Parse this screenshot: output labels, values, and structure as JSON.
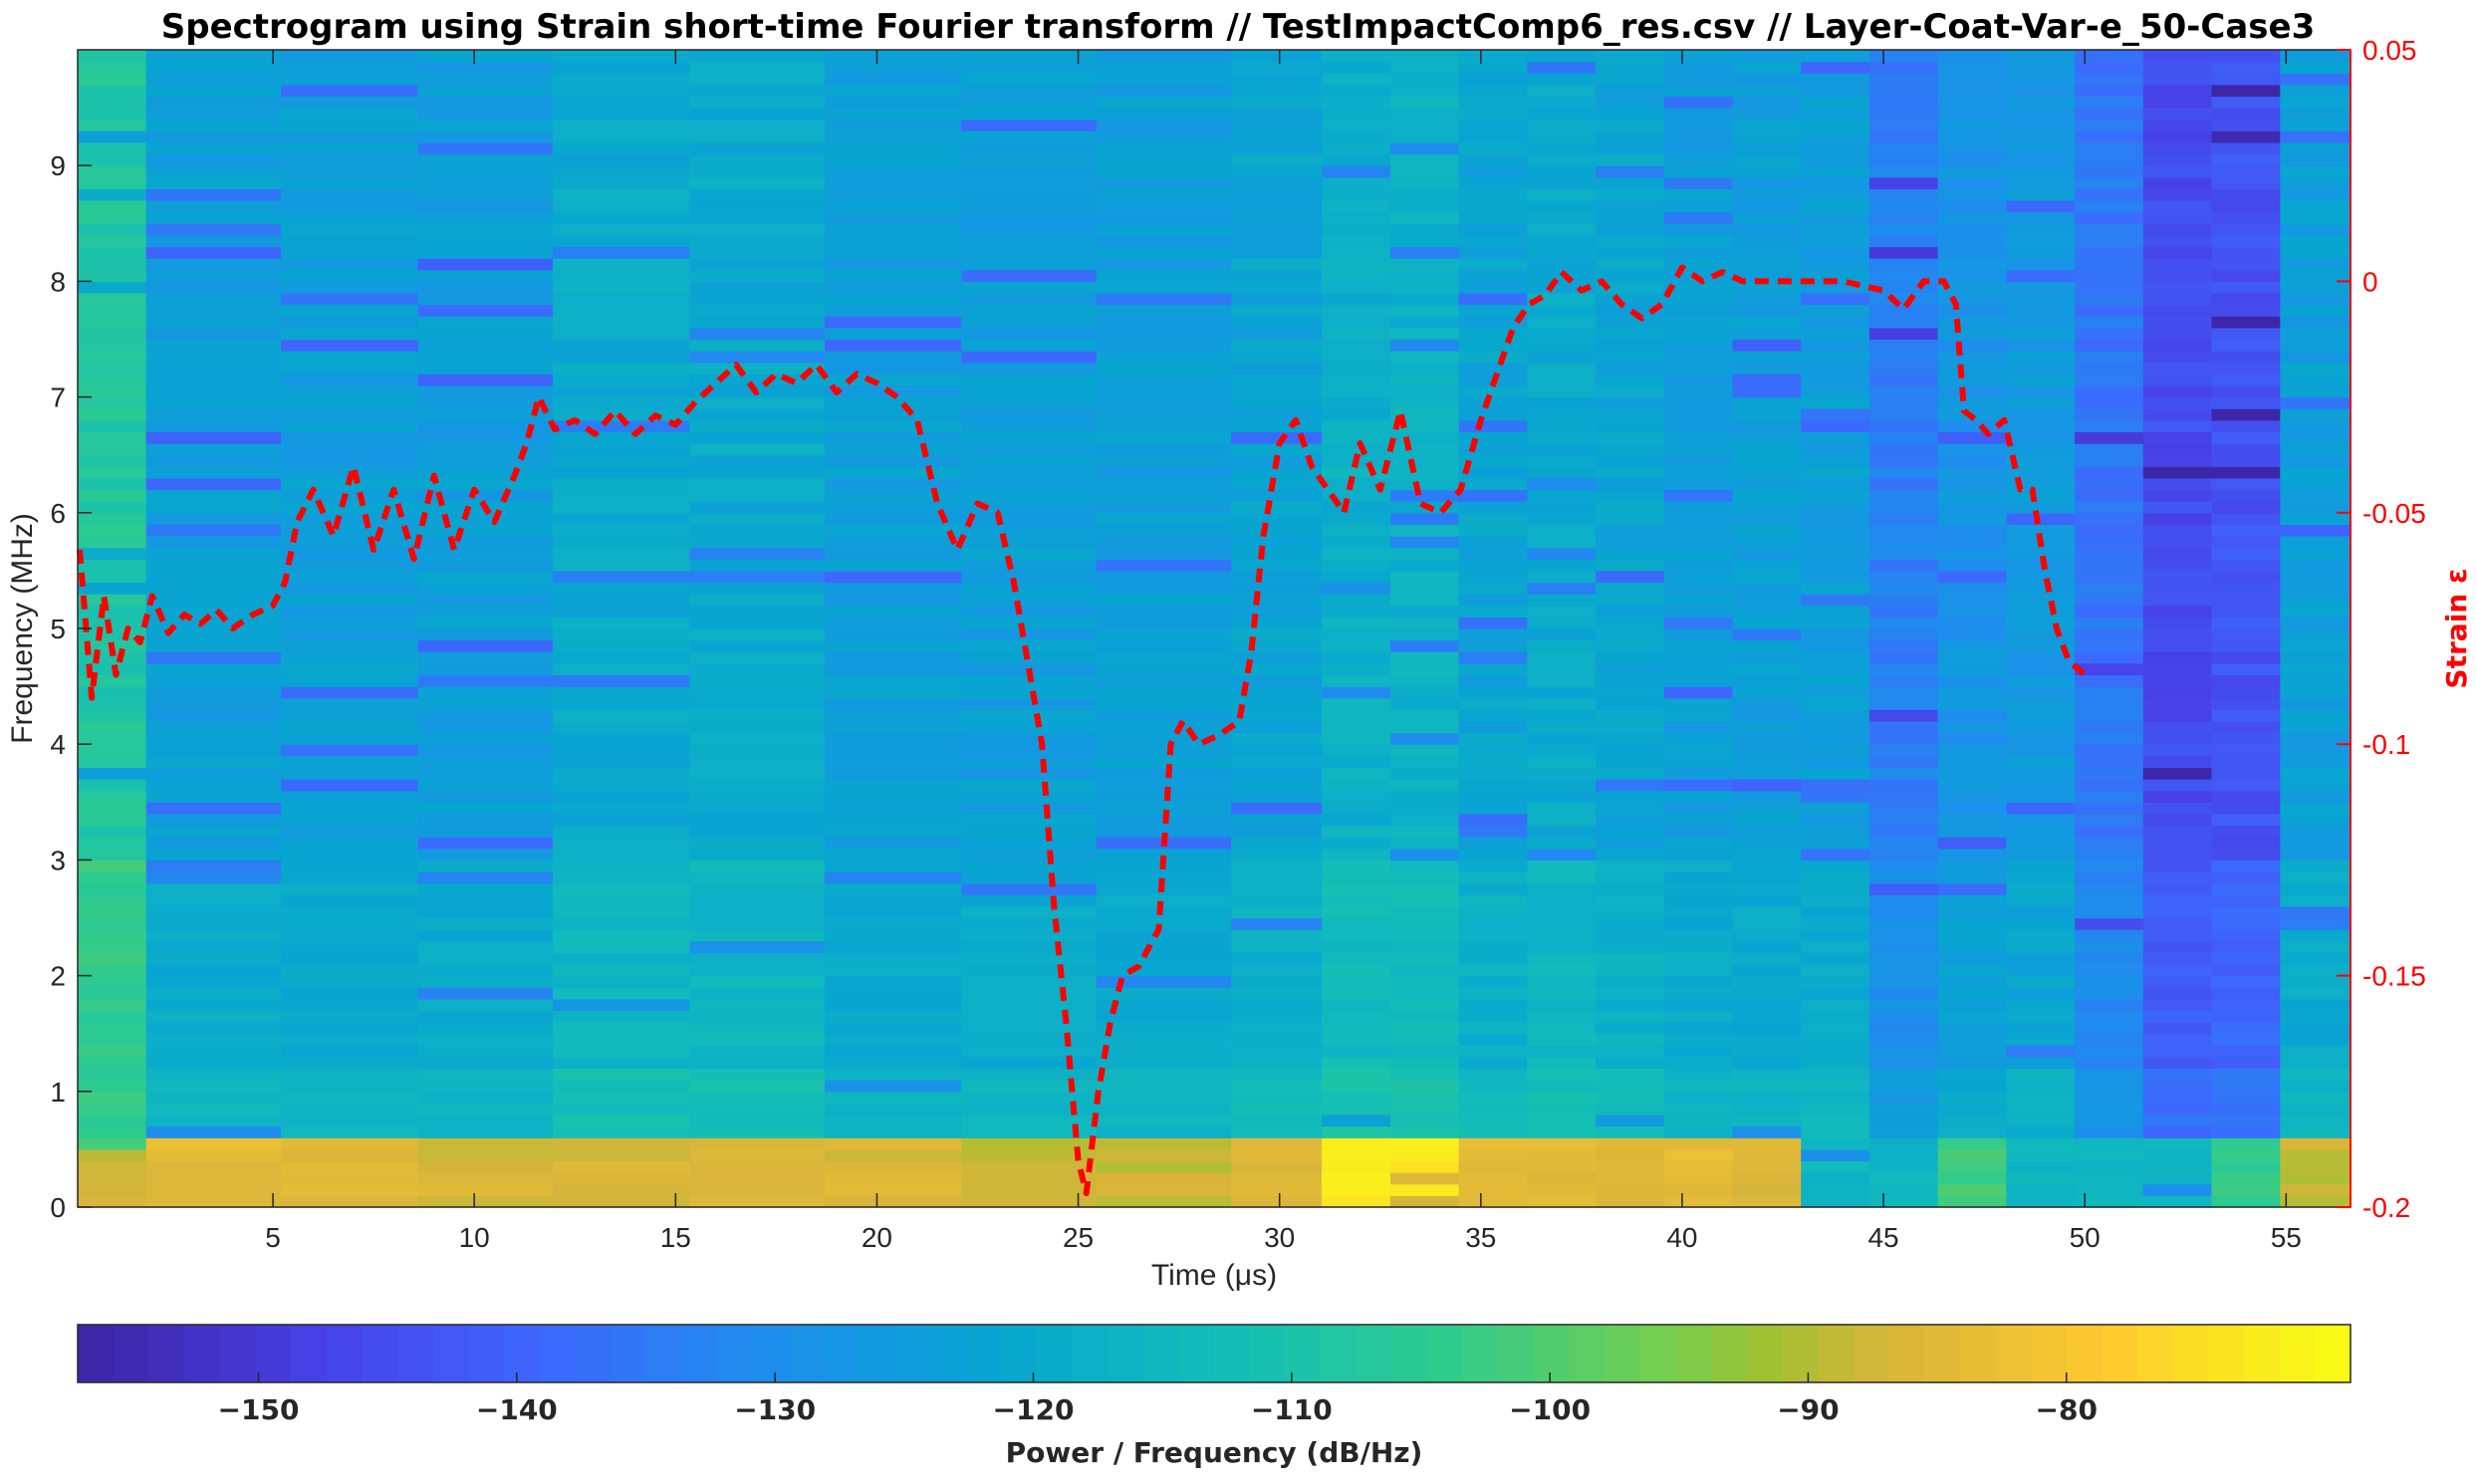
{
  "chart_data": {
    "type": "heatmap",
    "title": "Spectrogram using Strain short-time Fourier transform //  TestImpactComp6_res.csv  // Layer-Coat-Var-e_50-Case3",
    "xlabel": "Time (μs)",
    "ylabel": "Frequency (MHz)",
    "y2label": "Strain ε",
    "colorbar_label": "Power / Frequency (dB/Hz)",
    "xlim": [
      0.15,
      56.6
    ],
    "ylim": [
      0,
      10
    ],
    "y2lim": [
      -0.2,
      0.05
    ],
    "clim": [
      -157,
      -69
    ],
    "x_ticks": [
      5,
      10,
      15,
      20,
      25,
      30,
      35,
      40,
      45,
      50,
      55
    ],
    "x_tick_labels": [
      "5",
      "10",
      "15",
      "20",
      "25",
      "30",
      "35",
      "40",
      "45",
      "50",
      "55"
    ],
    "y_ticks": [
      0,
      1,
      2,
      3,
      4,
      5,
      6,
      7,
      8,
      9
    ],
    "y_tick_labels": [
      "0",
      "1",
      "2",
      "3",
      "4",
      "5",
      "6",
      "7",
      "8",
      "9"
    ],
    "y2_ticks": [
      -0.2,
      -0.15,
      -0.1,
      -0.05,
      0,
      0.05
    ],
    "y2_tick_labels": [
      "-0.2",
      "-0.15",
      "-0.1",
      "-0.05",
      "0",
      "0.05"
    ],
    "c_ticks": [
      -150,
      -140,
      -130,
      -120,
      -110,
      -100,
      -90,
      -80
    ],
    "c_tick_labels": [
      "−150",
      "−140",
      "−130",
      "−120",
      "−110",
      "−100",
      "−90",
      "−80"
    ],
    "colormap": "parula",
    "strain_color": "#ff0000",
    "strain_line_style": "dashed",
    "spectrogram": {
      "time_edges": [
        0.15,
        1.85,
        5.2,
        8.6,
        11.95,
        15.35,
        18.7,
        22.1,
        25.45,
        28.8,
        31.05,
        32.75,
        34.45,
        36.15,
        37.85,
        39.55,
        41.25,
        42.95,
        44.65,
        46.35,
        48.05,
        49.75,
        51.45,
        53.15,
        54.85,
        56.6
      ],
      "band_energy_low_0_to_0_6MHz_dB": [
        -88,
        -84,
        -85,
        -86,
        -86,
        -86,
        -86,
        -88,
        -88,
        -86,
        -72,
        -72,
        -84,
        -84,
        -84,
        -84,
        -86,
        -116,
        -116,
        -102,
        -116,
        -116,
        -116,
        -104,
        -88
      ],
      "background_dB_by_column": [
        -108,
        -124,
        -124,
        -124,
        -120,
        -120,
        -124,
        -124,
        -124,
        -122,
        -118,
        -118,
        -122,
        -120,
        -122,
        -124,
        -124,
        -124,
        -134,
        -128,
        -126,
        -136,
        -146,
        -144,
        -124
      ],
      "strong_band_dB": [
        [
          4.0,
          3.3,
          -98
        ],
        [
          7.0,
          6.0,
          -104
        ],
        [
          5.0,
          4.0,
          -110
        ],
        [
          3.0,
          1.5,
          -112
        ]
      ]
    },
    "series": [
      {
        "name": "",
        "type": "line",
        "x": [
          0.2,
          0.5,
          0.8,
          1.1,
          1.4,
          1.7,
          2.0,
          2.4,
          2.8,
          3.2,
          3.6,
          4.0,
          4.5,
          5.0,
          5.3,
          5.6,
          6.0,
          6.5,
          7.0,
          7.5,
          8.0,
          8.5,
          9.0,
          9.5,
          10.0,
          10.5,
          11.0,
          11.3,
          11.6,
          12.0,
          12.5,
          13.0,
          13.5,
          14.0,
          14.5,
          15.0,
          15.5,
          16.0,
          16.5,
          17.0,
          17.5,
          18.0,
          18.5,
          19.0,
          19.5,
          20.0,
          20.5,
          21.0,
          21.5,
          22.0,
          22.5,
          23.0,
          23.4,
          23.8,
          24.1,
          24.4,
          24.7,
          25.0,
          25.2,
          25.5,
          25.8,
          26.1,
          26.5,
          27.0,
          27.3,
          27.6,
          28.0,
          28.5,
          29.0,
          29.3,
          29.6,
          30.0,
          30.4,
          30.8,
          31.2,
          31.6,
          32.0,
          32.5,
          33.0,
          33.5,
          34.0,
          34.5,
          35.0,
          35.4,
          35.8,
          36.2,
          36.6,
          37.0,
          37.5,
          38.0,
          38.5,
          39.0,
          39.5,
          40.0,
          40.5,
          41.0,
          41.5,
          42.0,
          43.0,
          44.0,
          45.0,
          45.5,
          46.0,
          46.5,
          46.8,
          47.0,
          47.3,
          47.6,
          48.0,
          48.4,
          48.7,
          49.0,
          49.3,
          49.6,
          50.0
        ],
        "y": [
          -0.058,
          -0.09,
          -0.068,
          -0.085,
          -0.075,
          -0.078,
          -0.068,
          -0.076,
          -0.072,
          -0.074,
          -0.071,
          -0.075,
          -0.072,
          -0.07,
          -0.065,
          -0.052,
          -0.045,
          -0.055,
          -0.04,
          -0.058,
          -0.045,
          -0.06,
          -0.042,
          -0.058,
          -0.045,
          -0.052,
          -0.042,
          -0.035,
          -0.025,
          -0.032,
          -0.03,
          -0.033,
          -0.028,
          -0.033,
          -0.029,
          -0.031,
          -0.026,
          -0.022,
          -0.018,
          -0.024,
          -0.02,
          -0.022,
          -0.018,
          -0.024,
          -0.02,
          -0.022,
          -0.025,
          -0.03,
          -0.048,
          -0.058,
          -0.048,
          -0.05,
          -0.065,
          -0.085,
          -0.1,
          -0.135,
          -0.16,
          -0.19,
          -0.197,
          -0.175,
          -0.16,
          -0.15,
          -0.148,
          -0.14,
          -0.1,
          -0.095,
          -0.1,
          -0.098,
          -0.095,
          -0.08,
          -0.055,
          -0.035,
          -0.03,
          -0.04,
          -0.045,
          -0.05,
          -0.035,
          -0.045,
          -0.028,
          -0.048,
          -0.05,
          -0.045,
          -0.03,
          -0.02,
          -0.01,
          -0.005,
          -0.003,
          0.002,
          -0.002,
          0.0,
          -0.005,
          -0.008,
          -0.005,
          0.003,
          0.0,
          0.002,
          0.0,
          0.0,
          0.0,
          0.0,
          -0.002,
          -0.006,
          0.0,
          0.0,
          -0.005,
          -0.028,
          -0.03,
          -0.033,
          -0.03,
          -0.045,
          -0.045,
          -0.062,
          -0.075,
          -0.082,
          -0.085
        ]
      }
    ]
  }
}
